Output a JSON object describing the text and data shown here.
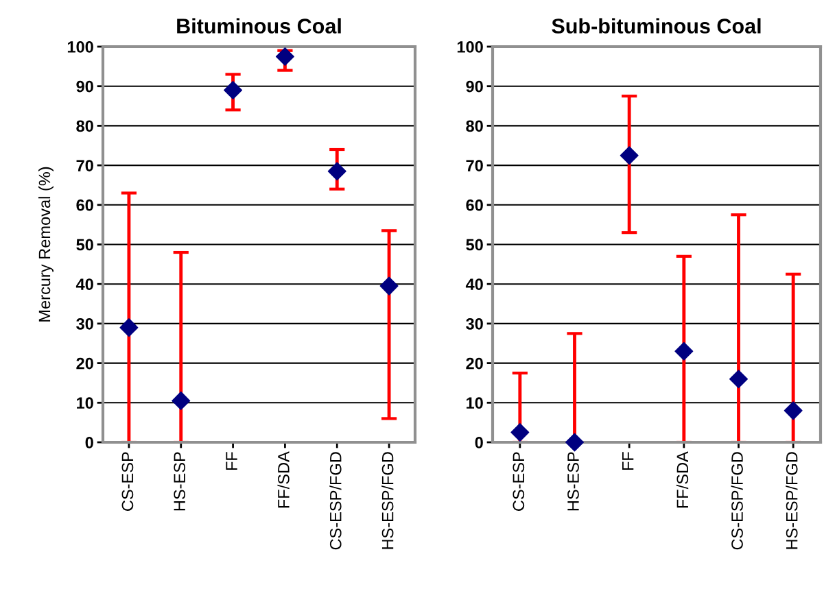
{
  "chart_data": [
    {
      "type": "scatter",
      "title": "Bituminous Coal",
      "ylabel": "Mercury Removal (%)",
      "categories": [
        "CS-ESP",
        "HS-ESP",
        "FF",
        "FF/SDA",
        "CS-ESP/FGD",
        "HS-ESP/FGD"
      ],
      "values": [
        29,
        10.5,
        89,
        97.5,
        68.5,
        39.5
      ],
      "errors": [
        [
          0,
          63
        ],
        [
          0,
          48
        ],
        [
          84,
          93
        ],
        [
          94,
          99
        ],
        [
          64,
          74
        ],
        [
          6,
          53.5
        ]
      ],
      "color": "#000080",
      "marker": "diamond",
      "ylim": [
        0,
        100
      ],
      "yticks": [
        0,
        10,
        20,
        30,
        40,
        50,
        60,
        70,
        80,
        90,
        100
      ],
      "grid": "y"
    },
    {
      "type": "scatter",
      "title": "Sub-bituminous Coal",
      "categories": [
        "CS-ESP",
        "HS-ESP",
        "FF",
        "FF/SDA",
        "CS-ESP/FGD",
        "HS-ESP/FGD"
      ],
      "values": [
        2.5,
        0,
        72.5,
        23,
        16,
        8
      ],
      "errors": [
        [
          0,
          17.5
        ],
        [
          0,
          27.5
        ],
        [
          53,
          87.5
        ],
        [
          0,
          47
        ],
        [
          0,
          57.5
        ],
        [
          0,
          42.5
        ]
      ],
      "color": "#000080",
      "marker": "diamond",
      "ylim": [
        0,
        100
      ],
      "yticks": [
        0,
        10,
        20,
        30,
        40,
        50,
        60,
        70,
        80,
        90,
        100
      ],
      "grid": "y"
    }
  ]
}
